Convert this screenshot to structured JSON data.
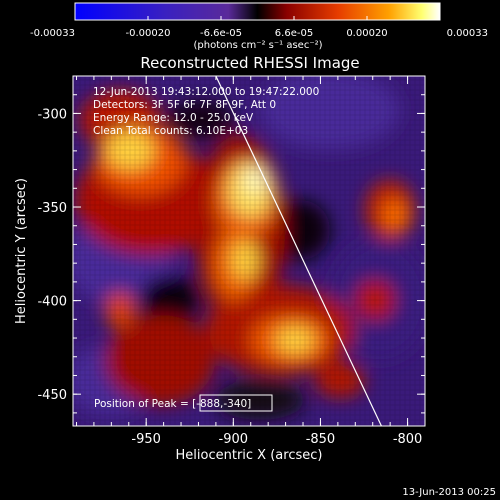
{
  "colorbar": {
    "tick_labels": [
      "-0.00033",
      "-0.00020",
      "-6.6e-05",
      "6.6e-05",
      "0.00020",
      "0.00033"
    ],
    "units": "(photons cm⁻² s⁻¹ asec⁻²)",
    "colors": [
      "#0000ff",
      "#2a16c8",
      "#5a1ea0",
      "#000000",
      "#8a0000",
      "#e03000",
      "#ff9000",
      "#ffff60",
      "#ffffff"
    ]
  },
  "plot": {
    "title": "Reconstructed RHESSI Image",
    "xlabel": "Heliocentric X (arcsec)",
    "ylabel": "Heliocentric Y (arcsec)",
    "xlim": [
      -992,
      -790
    ],
    "ylim": [
      -467,
      -280
    ],
    "xticks": [
      "-950",
      "-900",
      "-850",
      "-800"
    ],
    "yticks": [
      "-300",
      "-350",
      "-400",
      "-450"
    ],
    "annotations": [
      "12-Jun-2013 19:43:12.000 to 19:47:22.000",
      "Detectors: 3F 5F 6F 7F 8F 9F, Att 0",
      "Energy Range: 12.0 - 25.0 keV",
      "Clean     Total counts: 6.10E+03"
    ],
    "peak_label": "Position of Peak = [-888,-340]",
    "limb_line": {
      "x1": -910,
      "y1": -280,
      "x2": -815,
      "y2": -467
    }
  },
  "datestamp": "13-Jun-2013 00:25"
}
